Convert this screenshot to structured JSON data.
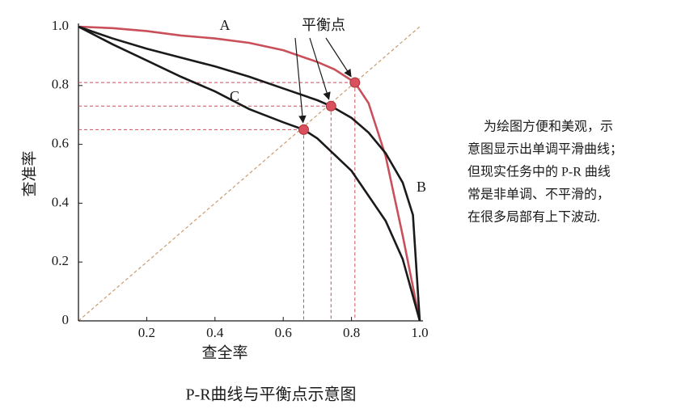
{
  "chart_data": {
    "type": "line",
    "title": "P-R曲线与平衡点示意图",
    "xlabel": "查全率",
    "ylabel": "查准率",
    "xlim": [
      0,
      1
    ],
    "ylim": [
      0,
      1
    ],
    "xticks": [
      0.2,
      0.4,
      0.6,
      0.8,
      {
        "value": 1,
        "label": "1.0"
      }
    ],
    "yticks": [
      0,
      0.2,
      0.4,
      0.6,
      0.8,
      {
        "value": 1,
        "label": "1.0"
      }
    ],
    "series": [
      {
        "name": "A",
        "color": "#c9505a",
        "x": [
          0,
          0.1,
          0.2,
          0.3,
          0.4,
          0.5,
          0.6,
          0.7,
          0.75,
          0.81,
          0.85,
          0.9,
          0.95,
          1
        ],
        "values": [
          1,
          0.995,
          0.985,
          0.97,
          0.96,
          0.945,
          0.92,
          0.88,
          0.855,
          0.81,
          0.74,
          0.56,
          0.29,
          0
        ]
      },
      {
        "name": "B",
        "color": "#1a1a1a",
        "x": [
          0,
          0.1,
          0.2,
          0.3,
          0.4,
          0.5,
          0.6,
          0.7,
          0.74,
          0.8,
          0.85,
          0.9,
          0.95,
          0.98,
          1
        ],
        "values": [
          1,
          0.96,
          0.925,
          0.895,
          0.865,
          0.83,
          0.79,
          0.75,
          0.73,
          0.69,
          0.64,
          0.57,
          0.47,
          0.36,
          0
        ]
      },
      {
        "name": "C",
        "color": "#1a1a1a",
        "x": [
          0,
          0.1,
          0.2,
          0.3,
          0.4,
          0.5,
          0.6,
          0.66,
          0.7,
          0.8,
          0.9,
          0.95,
          1
        ],
        "values": [
          1,
          0.94,
          0.885,
          0.83,
          0.78,
          0.72,
          0.675,
          0.65,
          0.62,
          0.51,
          0.34,
          0.21,
          0
        ]
      }
    ],
    "break_even": {
      "label": "平衡点",
      "color": "#d9505e",
      "x": [
        0.81,
        0.74,
        0.66
      ],
      "y": [
        0.81,
        0.73,
        0.65
      ]
    },
    "note": [
      "为绘图方便和美观，示",
      "意图显示出单调平滑曲线；",
      "但现实任务中的 P-R 曲线",
      "常是非单调、不平滑的，",
      "在很多局部有上下波动."
    ]
  }
}
